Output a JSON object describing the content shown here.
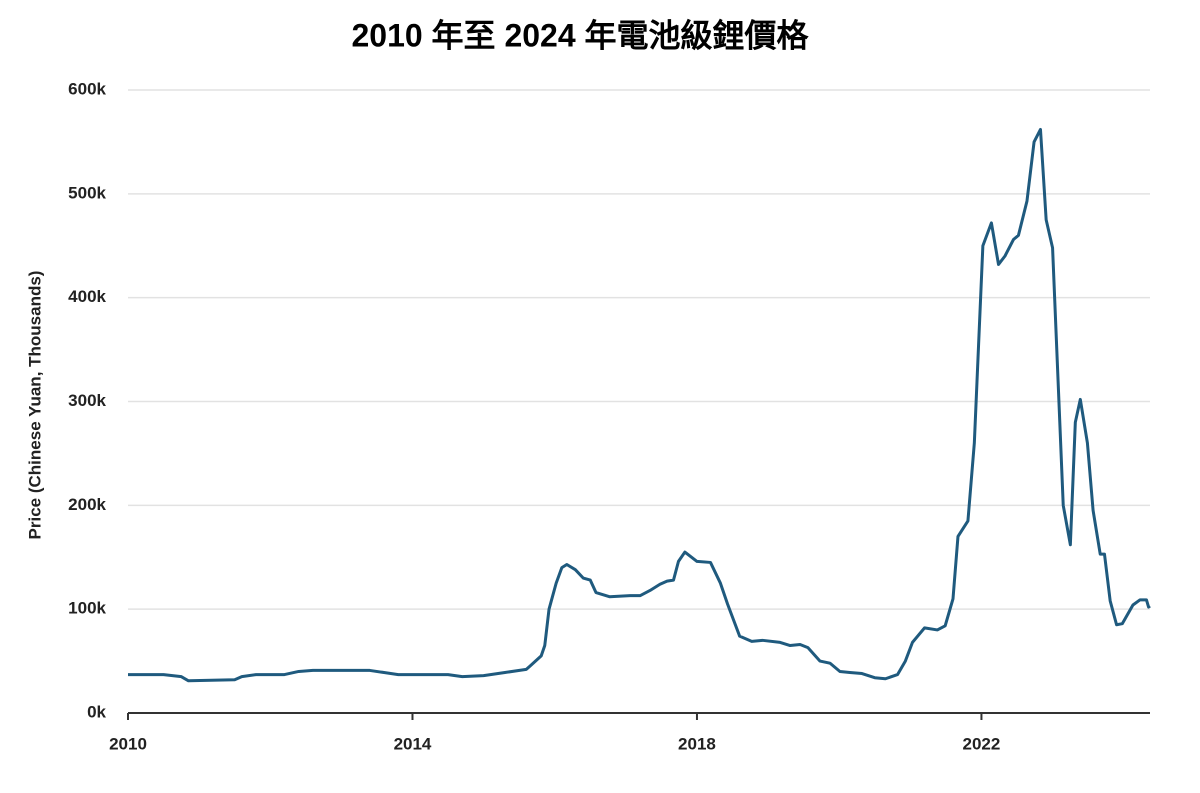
{
  "chart_data": {
    "type": "line",
    "title": "2010 年至 2024 年電池級鋰價格",
    "y_label": "Price (Chinese Yuan, Thousands)",
    "color": "#1f5a7e",
    "grid": true,
    "x": [
      2010,
      2010.5,
      2010.75,
      2010.85,
      2011.5,
      2011.6,
      2011.8,
      2012.2,
      2012.4,
      2012.6,
      2013.0,
      2013.4,
      2013.6,
      2013.8,
      2014.0,
      2014.5,
      2014.7,
      2015.0,
      2015.3,
      2015.6,
      2015.65,
      2015.81,
      2015.86,
      2015.92,
      2016.02,
      2016.1,
      2016.17,
      2016.29,
      2016.4,
      2016.5,
      2016.58,
      2016.77,
      2017.06,
      2017.2,
      2017.34,
      2017.48,
      2017.58,
      2017.67,
      2017.74,
      2017.83,
      2018.0,
      2018.19,
      2018.33,
      2018.43,
      2018.6,
      2018.77,
      2018.92,
      2019.17,
      2019.31,
      2019.45,
      2019.56,
      2019.73,
      2019.87,
      2020.01,
      2020.15,
      2020.32,
      2020.5,
      2020.65,
      2020.82,
      2020.93,
      2021.03,
      2021.2,
      2021.38,
      2021.49,
      2021.6,
      2021.67,
      2021.81,
      2021.9,
      2022.02,
      2022.14,
      2022.24,
      2022.33,
      2022.45,
      2022.52,
      2022.64,
      2022.74,
      2022.83,
      2022.91,
      2023.0,
      2023.15,
      2023.25,
      2023.32,
      2023.39,
      2023.49,
      2023.57,
      2023.67,
      2023.73,
      2023.81,
      2023.9,
      2023.98,
      2024.13,
      2024.23,
      2024.32,
      2024.35,
      2024.37
    ],
    "values": [
      37000,
      37000,
      35000,
      31000,
      32000,
      35000,
      37000,
      37000,
      40000,
      41000,
      41000,
      41000,
      39000,
      37000,
      37000,
      37000,
      35000,
      36000,
      39000,
      42000,
      45000,
      55000,
      65000,
      100000,
      125000,
      140000,
      143000,
      138000,
      130000,
      128000,
      116000,
      112000,
      113000,
      113000,
      118000,
      124000,
      127000,
      128000,
      146000,
      155000,
      146000,
      145000,
      125000,
      105000,
      74000,
      69000,
      70000,
      68000,
      65000,
      66000,
      63000,
      50000,
      48000,
      40000,
      39000,
      38000,
      34000,
      33000,
      37000,
      50000,
      68000,
      82000,
      80000,
      84000,
      110000,
      170000,
      185000,
      260000,
      450000,
      472000,
      432000,
      440000,
      456000,
      460000,
      493000,
      550000,
      562000,
      475000,
      448000,
      200000,
      162000,
      280000,
      302000,
      260000,
      195000,
      153000,
      153000,
      108000,
      85000,
      86000,
      104000,
      109000,
      109000,
      102000,
      103000
    ],
    "xlim": [
      2010,
      2024.37
    ],
    "xticks": [
      2010,
      2014,
      2018,
      2022
    ],
    "ylim": [
      0,
      600000
    ],
    "yticks": [
      {
        "value": 0,
        "label": "0k"
      },
      {
        "value": 100000,
        "label": "100k"
      },
      {
        "value": 200000,
        "label": "200k"
      },
      {
        "value": 300000,
        "label": "300k"
      },
      {
        "value": 400000,
        "label": "400k"
      },
      {
        "value": 500000,
        "label": "500k"
      },
      {
        "value": 600000,
        "label": "600k"
      }
    ]
  }
}
